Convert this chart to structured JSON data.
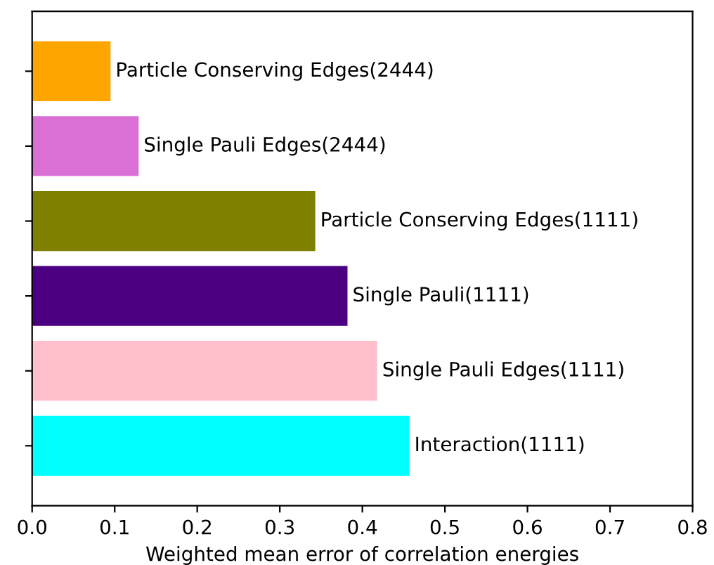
{
  "chart_data": {
    "type": "bar",
    "orientation": "horizontal",
    "xlabel": "Weighted mean error of correlation energies",
    "categories": [
      "Particle Conserving Edges(2444)",
      "Single Pauli Edges(2444)",
      "Particle Conserving Edges(1111)",
      "Single Pauli(1111)",
      "Single Pauli Edges(1111)",
      "Interaction(1111)"
    ],
    "values": [
      0.095,
      0.129,
      0.343,
      0.382,
      0.418,
      0.457
    ],
    "colors": [
      "#ffa500",
      "#da70d6",
      "#808000",
      "#4b0082",
      "#ffc0cb",
      "#00ffff"
    ],
    "xlim": [
      0.0,
      0.8
    ],
    "xticks": [
      {
        "value": 0.0,
        "label": "0.0"
      },
      {
        "value": 0.1,
        "label": "0.1"
      },
      {
        "value": 0.2,
        "label": "0.2"
      },
      {
        "value": 0.3,
        "label": "0.3"
      },
      {
        "value": 0.4,
        "label": "0.4"
      },
      {
        "value": 0.5,
        "label": "0.5"
      },
      {
        "value": 0.6,
        "label": "0.6"
      },
      {
        "value": 0.7,
        "label": "0.7"
      },
      {
        "value": 0.8,
        "label": "0.8"
      }
    ],
    "tick_labels": "x"
  }
}
